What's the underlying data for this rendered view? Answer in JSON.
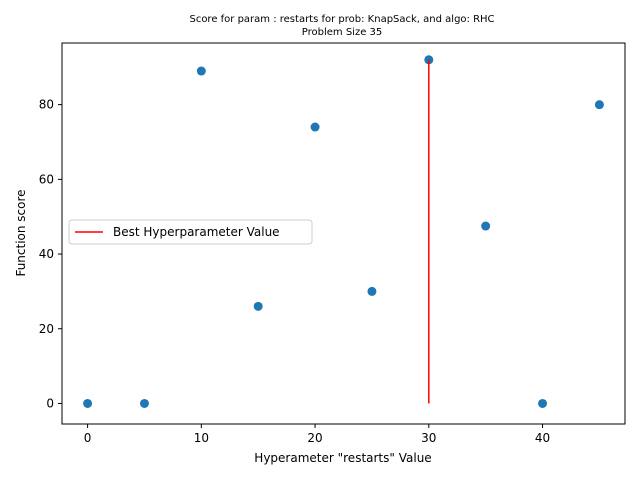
{
  "chart_data": {
    "type": "scatter",
    "title_line1": "Score for param : restarts for prob: KnapSack, and algo: RHC",
    "title_line2": "Problem Size 35",
    "xlabel": "Hyperameter \"restarts\" Value",
    "ylabel": "Function score",
    "xlim": [
      -2.25,
      47.25
    ],
    "ylim": [
      -5.5,
      96.5
    ],
    "x_ticks": [
      0,
      10,
      20,
      30,
      40
    ],
    "y_ticks": [
      0,
      20,
      40,
      60,
      80
    ],
    "grid": false,
    "legend_position": "center-left",
    "series": [
      {
        "name": "",
        "kind": "scatter",
        "color": "#1f77b4",
        "points": [
          {
            "x": 0,
            "y": 0
          },
          {
            "x": 5,
            "y": 0
          },
          {
            "x": 10,
            "y": 89
          },
          {
            "x": 15,
            "y": 26
          },
          {
            "x": 20,
            "y": 74
          },
          {
            "x": 25,
            "y": 30
          },
          {
            "x": 30,
            "y": 92
          },
          {
            "x": 35,
            "y": 47.5
          },
          {
            "x": 40,
            "y": 0
          },
          {
            "x": 45,
            "y": 80
          }
        ]
      },
      {
        "name": "Best Hyperparameter Value",
        "kind": "vline",
        "color": "#ff0000",
        "x": 30,
        "y_from": 0,
        "y_to": 92
      }
    ]
  }
}
